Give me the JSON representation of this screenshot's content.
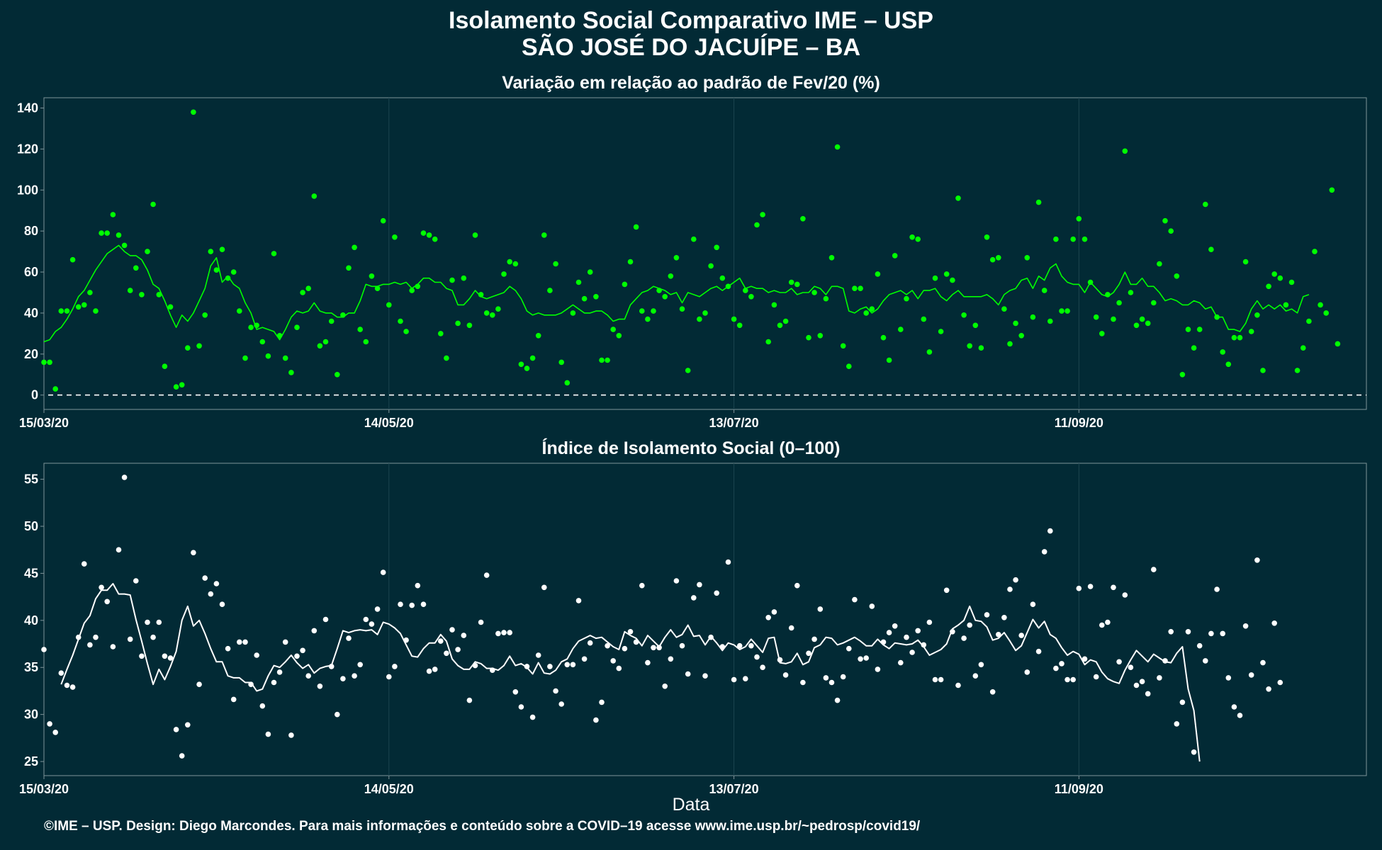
{
  "figure": {
    "title_line1": "Isolamento Social Comparativo IME – USP",
    "title_line2": "SÃO JOSÉ DO JACUÍPE – BA",
    "xlabel": "Data",
    "footer": "©IME – USP. Design: Diego Marcondes. Para mais informações e conteúdo sobre a COVID–19 acesse www.ime.usp.br/~pedrosp/covid19/"
  },
  "colors": {
    "background": "#022a35",
    "panel_border": "#7f9499",
    "grid": "#1c4550",
    "green": "#00ff00",
    "white": "#ffffff"
  },
  "chart_data": [
    {
      "type": "scatter",
      "title": "Variação em relação ao padrão de Fev/20 (%)",
      "xlabel": "",
      "ylabel": "",
      "x_start": "15/03/20",
      "x_end": "31/10/20",
      "xlim": [
        "15/03/20",
        "31/10/20"
      ],
      "ylim": [
        -7,
        145
      ],
      "yticks": [
        0,
        20,
        40,
        60,
        80,
        100,
        120,
        140
      ],
      "xticks": [
        "15/03/20",
        "14/05/20",
        "13/07/20",
        "11/09/20"
      ],
      "reference_line": 0,
      "grid": true,
      "legend": "none",
      "color": "#00ff00",
      "values": [
        16,
        16,
        3,
        41,
        41,
        66,
        43,
        44,
        50,
        41,
        79,
        79,
        88,
        78,
        73,
        51,
        62,
        49,
        70,
        93,
        49,
        14,
        43,
        4,
        5,
        23,
        138,
        24,
        39,
        70,
        61,
        71,
        57,
        60,
        41,
        18,
        33,
        34,
        26,
        19,
        69,
        29,
        18,
        11,
        33,
        50,
        52,
        97,
        24,
        26,
        36,
        10,
        39,
        62,
        72,
        32,
        26,
        58,
        52,
        85,
        44,
        77,
        36,
        31,
        51,
        53,
        79,
        78,
        76,
        30,
        18,
        56,
        35,
        57,
        34,
        78,
        49,
        40,
        39,
        42,
        59,
        65,
        64,
        15,
        13,
        18,
        29,
        78,
        51,
        64,
        16,
        6,
        40,
        55,
        47,
        60,
        48,
        17,
        17,
        32,
        29,
        54,
        65,
        82,
        41,
        37,
        41,
        51,
        48,
        58,
        67,
        42,
        12,
        76,
        37,
        40,
        63,
        72,
        57,
        53,
        37,
        34,
        51,
        48,
        83,
        88,
        26,
        44,
        34,
        36,
        55,
        54,
        86,
        28,
        50,
        29,
        47,
        67,
        121,
        24,
        14,
        52,
        52,
        40,
        42,
        59,
        28,
        17,
        68,
        32,
        47,
        77,
        76,
        37,
        21,
        57,
        31,
        59,
        56,
        96,
        39,
        24,
        34,
        23,
        77,
        66,
        67,
        42,
        25,
        35,
        29,
        67,
        38,
        94,
        51,
        36,
        76,
        41,
        41,
        76,
        86,
        76,
        55,
        38,
        30,
        49,
        37,
        45,
        119,
        50,
        34,
        37,
        35,
        45,
        64,
        85,
        80,
        58,
        10,
        32,
        23,
        32,
        93,
        71,
        38,
        21,
        15,
        28,
        28,
        65,
        31,
        39,
        12,
        53,
        59,
        57,
        44,
        55,
        12,
        23,
        36,
        70,
        44,
        40,
        100,
        25
      ],
      "rolling_avg": [
        26,
        27,
        31,
        33,
        37,
        42,
        48,
        51,
        56,
        61,
        65,
        69,
        71,
        73,
        70,
        68,
        68,
        66,
        61,
        54,
        52,
        46,
        39,
        33,
        39,
        36,
        40,
        46,
        52,
        63,
        67,
        55,
        58,
        54,
        52,
        45,
        40,
        32,
        33,
        32,
        31,
        27,
        32,
        38,
        41,
        40,
        41,
        45,
        41,
        40,
        40,
        38,
        38,
        40,
        40,
        46,
        54,
        53,
        53,
        54,
        54,
        55,
        54,
        55,
        52,
        54,
        57,
        57,
        55,
        55,
        52,
        51,
        44,
        44,
        47,
        51,
        48,
        47,
        48,
        49,
        50,
        53,
        51,
        47,
        41,
        39,
        40,
        39,
        39,
        39,
        40,
        42,
        44,
        42,
        40,
        40,
        41,
        41,
        39,
        36,
        37,
        37,
        44,
        47,
        50,
        51,
        53,
        52,
        51,
        49,
        50,
        45,
        50,
        49,
        48,
        50,
        52,
        53,
        51,
        53,
        55,
        57,
        52,
        53,
        52,
        52,
        50,
        51,
        50,
        50,
        52,
        49,
        50,
        50,
        53,
        52,
        49,
        53,
        53,
        52,
        41,
        40,
        42,
        43,
        40,
        42,
        46,
        49,
        50,
        51,
        49,
        51,
        47,
        51,
        51,
        52,
        48,
        46,
        49,
        51,
        48,
        48,
        48,
        48,
        49,
        47,
        44,
        49,
        51,
        52,
        56,
        57,
        52,
        58,
        56,
        62,
        64,
        58,
        55,
        54,
        54,
        50,
        55,
        52,
        49,
        48,
        50,
        54,
        60,
        54,
        54,
        57,
        53,
        53,
        50,
        46,
        47,
        46,
        44,
        44,
        46,
        45,
        42,
        43,
        38,
        38,
        32,
        32,
        31,
        35,
        42,
        46,
        42,
        44,
        42,
        44,
        41,
        42,
        40,
        48,
        49,
        null
      ]
    },
    {
      "type": "scatter",
      "title": "Índice de Isolamento Social (0–100)",
      "xlabel": "Data",
      "ylabel": "",
      "x_start": "15/03/20",
      "x_end": "31/10/20",
      "xlim": [
        "15/03/20",
        "31/10/20"
      ],
      "ylim": [
        23.5,
        56.7
      ],
      "yticks": [
        25,
        30,
        35,
        40,
        45,
        50,
        55
      ],
      "xticks": [
        "15/03/20",
        "14/05/20",
        "13/07/20",
        "11/09/20"
      ],
      "grid": true,
      "legend": "none",
      "color": "#ffffff",
      "values": [
        36.9,
        29.0,
        28.1,
        34.4,
        33.1,
        32.9,
        38.2,
        46.0,
        37.4,
        38.2,
        43.5,
        42.0,
        37.2,
        47.5,
        55.2,
        38.0,
        44.2,
        36.2,
        39.8,
        38.2,
        39.8,
        36.2,
        36.0,
        28.4,
        25.6,
        28.9,
        47.2,
        33.2,
        44.5,
        42.8,
        43.9,
        41.7,
        37.0,
        31.6,
        37.7,
        37.7,
        33.2,
        36.3,
        30.9,
        27.9,
        33.4,
        34.5,
        37.7,
        27.8,
        36.2,
        36.8,
        34.1,
        38.9,
        33.0,
        40.1,
        35.1,
        30.0,
        33.8,
        38.1,
        34.1,
        35.3,
        40.1,
        39.6,
        41.2,
        45.1,
        34.0,
        35.1,
        41.7,
        37.9,
        41.6,
        43.7,
        41.7,
        34.6,
        34.8,
        37.8,
        36.5,
        39.0,
        36.9,
        38.4,
        31.5,
        35.2,
        39.8,
        44.8,
        34.7,
        38.6,
        38.7,
        38.7,
        32.4,
        30.8,
        35.1,
        29.7,
        36.3,
        43.5,
        35.1,
        32.5,
        31.1,
        35.3,
        35.3,
        42.1,
        35.9,
        37.6,
        29.4,
        31.3,
        37.3,
        35.7,
        34.9,
        37.0,
        38.8,
        37.7,
        43.7,
        35.5,
        37.1,
        37.1,
        33.0,
        35.9,
        44.2,
        37.3,
        34.3,
        42.4,
        43.8,
        34.1,
        38.2,
        42.9,
        37.2,
        46.2,
        33.7,
        37.3,
        33.8,
        37.3,
        36.1,
        35.0,
        40.3,
        40.9,
        35.8,
        34.2,
        39.2,
        43.7,
        33.4,
        36.5,
        38.0,
        41.2,
        33.9,
        33.4,
        31.5,
        34.0,
        37.0,
        42.2,
        35.9,
        36.0,
        41.5,
        34.8,
        37.7,
        38.7,
        39.4,
        35.5,
        38.2,
        36.6,
        38.9,
        37.4,
        39.8,
        33.7,
        33.7,
        43.2,
        38.8,
        33.1,
        38.1,
        39.5,
        34.1,
        35.3,
        40.6,
        32.4,
        38.5,
        40.3,
        43.3,
        44.3,
        38.4,
        34.5,
        41.7,
        36.7,
        47.3,
        49.5,
        34.9,
        35.4,
        33.7,
        33.7,
        43.4,
        35.9,
        43.6,
        34.0,
        39.5,
        39.8,
        43.5,
        35.6,
        42.7,
        35.0,
        33.1,
        33.5,
        32.2,
        45.4,
        33.9,
        35.7,
        38.8,
        29.0,
        31.3,
        38.8,
        26.0,
        37.3,
        35.7,
        38.6,
        43.3,
        38.6,
        33.9,
        30.8,
        29.9,
        39.4,
        34.2,
        46.4,
        35.5,
        32.7,
        39.7,
        33.4
      ],
      "rolling_avg": [
        null,
        null,
        null,
        33.2,
        34.8,
        36.3,
        38.0,
        39.7,
        40.5,
        42.3,
        43.2,
        43.2,
        43.9,
        42.8,
        42.8,
        42.7,
        40.1,
        37.8,
        35.4,
        33.2,
        34.8,
        33.7,
        35.1,
        36.7,
        40.0,
        41.5,
        39.4,
        40.0,
        38.6,
        37.0,
        35.6,
        35.6,
        34.1,
        33.9,
        33.9,
        33.4,
        33.4,
        32.5,
        32.7,
        34.1,
        35.2,
        35.0,
        35.6,
        36.3,
        35.5,
        34.9,
        35.3,
        34.4,
        34.9,
        35.1,
        35.2,
        37.0,
        38.9,
        38.7,
        38.9,
        39.0,
        38.9,
        39.0,
        38.5,
        39.8,
        39.6,
        39.2,
        38.6,
        37.4,
        36.2,
        36.1,
        37.0,
        37.6,
        37.6,
        38.5,
        37.8,
        35.9,
        35.2,
        34.8,
        34.8,
        35.6,
        35.4,
        34.9,
        34.9,
        34.7,
        35.2,
        36.2,
        35.2,
        35.4,
        35.0,
        34.3,
        35.5,
        34.4,
        34.3,
        34.7,
        35.6,
        35.9,
        37.0,
        37.8,
        38.1,
        38.4,
        38.1,
        38.2,
        37.7,
        37.2,
        36.9,
        38.8,
        38.4,
        38.1,
        37.3,
        38.4,
        37.8,
        37.2,
        38.2,
        39.0,
        38.2,
        38.5,
        39.5,
        38.3,
        38.4,
        37.4,
        38.3,
        37.6,
        36.8,
        37.6,
        37.4,
        36.9,
        37.2,
        38.0,
        37.3,
        36.6,
        38.1,
        38.2,
        35.5,
        35.4,
        35.6,
        36.5,
        35.3,
        35.6,
        37.1,
        37.4,
        38.2,
        38.1,
        37.4,
        37.6,
        37.9,
        38.2,
        37.8,
        37.3,
        37.3,
        38.0,
        37.4,
        37.0,
        37.6,
        37.5,
        37.4,
        37.5,
        37.9,
        37.2,
        36.3,
        36.6,
        36.9,
        37.5,
        39.1,
        39.5,
        40.0,
        41.5,
        40.0,
        39.9,
        39.3,
        37.9,
        38.1,
        38.7,
        37.8,
        36.8,
        37.3,
        38.7,
        40.1,
        39.2,
        39.9,
        38.5,
        38.1,
        37.1,
        36.3,
        36.7,
        36.4,
        35.3,
        35.8,
        35.6,
        34.5,
        33.8,
        33.5,
        33.3,
        34.7,
        35.8,
        36.8,
        36.2,
        35.6,
        36.4,
        36.0,
        35.6,
        35.5,
        36.5,
        37.2,
        32.7,
        30.4,
        25.0
      ]
    }
  ]
}
